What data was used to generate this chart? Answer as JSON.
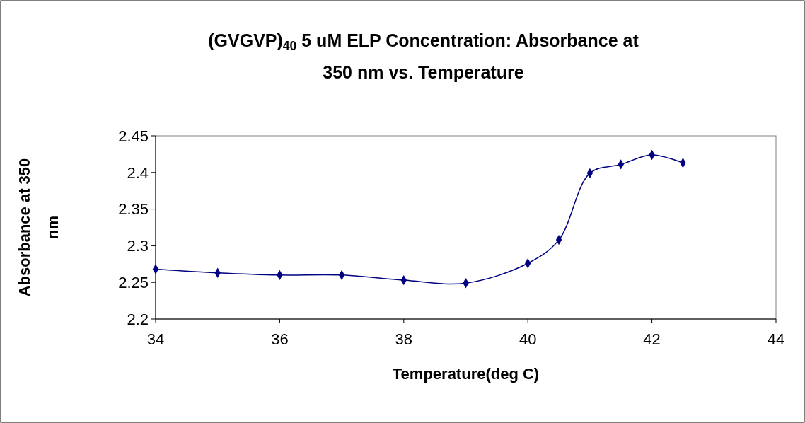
{
  "chart_data": {
    "type": "line",
    "title": "(GVGVP)$_{40}$ 5 uM ELP Concentration: Absorbance at 350 nm vs. Temperature",
    "xlabel": "Temperature(deg C)",
    "ylabel": "Absorbance at 350 nm",
    "x": [
      34,
      35,
      36,
      37,
      38,
      39,
      40,
      40.5,
      41,
      41.5,
      42,
      42.5
    ],
    "series": [
      {
        "color": "#000080",
        "values": [
          2.268,
          2.263,
          2.26,
          2.26,
          2.253,
          2.249,
          2.276,
          2.308,
          2.399,
          2.411,
          2.424,
          2.413
        ]
      }
    ],
    "xlim": [
      34,
      44
    ],
    "xticks": [
      34,
      36,
      38,
      40,
      42,
      44
    ],
    "ylim": [
      2.2,
      2.45
    ],
    "yticks": [
      2.2,
      2.25,
      2.3,
      2.35,
      2.4,
      2.45
    ],
    "grid": false,
    "marker": "diamond",
    "line_style": "solid"
  }
}
